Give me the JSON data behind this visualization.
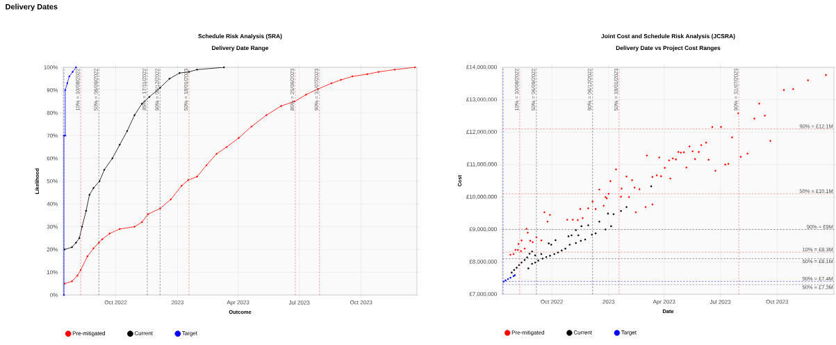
{
  "chart_data": [
    {
      "type": "line",
      "title": "Schedule Risk Analysis (SRA)",
      "subtitle": "Delivery Date Range",
      "xlabel": "Outcome",
      "ylabel": "Likelihood",
      "annotations": [
        "Delivery Dates"
      ],
      "series": [
        {
          "name": "Pre-mitigated",
          "color": "#ff0000",
          "x": [
            "2022-07-17",
            "2022-07-28",
            "2022-08-05",
            "2022-08-10",
            "2022-08-20",
            "2022-08-29",
            "2022-09-06",
            "2022-09-11",
            "2022-09-22",
            "2022-10-07",
            "2022-10-29",
            "2022-11-09",
            "2022-11-18",
            "2022-12-06",
            "2022-12-22",
            "2023-01-07",
            "2023-01-17",
            "2023-01-30",
            "2023-02-13",
            "2023-02-28",
            "2023-03-15",
            "2023-04-02",
            "2023-04-21",
            "2023-05-13",
            "2023-06-04",
            "2023-06-24",
            "2023-07-11",
            "2023-07-29",
            "2023-08-18",
            "2023-09-01",
            "2023-09-18",
            "2023-10-10",
            "2023-10-27",
            "2023-11-20",
            "2023-12-20"
          ],
          "values": [
            5,
            6,
            8.5,
            11,
            17,
            20.5,
            23,
            24.5,
            27,
            29,
            30,
            32,
            35.5,
            38,
            42,
            48,
            50.5,
            52,
            57,
            62,
            65,
            69,
            74,
            79,
            83,
            85,
            88,
            90.5,
            93,
            94.5,
            96,
            97,
            98,
            99,
            100
          ]
        },
        {
          "name": "Current",
          "color": "#000000",
          "x": [
            "2022-07-17",
            "2022-07-28",
            "2022-08-03",
            "2022-08-08",
            "2022-08-12",
            "2022-08-18",
            "2022-08-23",
            "2022-08-29",
            "2022-09-07",
            "2022-09-14",
            "2022-09-26",
            "2022-10-07",
            "2022-10-18",
            "2022-10-29",
            "2022-11-09",
            "2022-11-20",
            "2022-12-06",
            "2022-12-20",
            "2023-01-04",
            "2023-01-18",
            "2023-01-30",
            "2023-03-11"
          ],
          "values": [
            20,
            21,
            23,
            25,
            30,
            37,
            44,
            47,
            50,
            55,
            60,
            66,
            72,
            79,
            84,
            87,
            91,
            95,
            97.5,
            98,
            99,
            100
          ]
        },
        {
          "name": "Target",
          "color": "#0000ff",
          "x": [
            "2022-07-16",
            "2022-07-16",
            "2022-07-18",
            "2022-07-18",
            "2022-07-21",
            "2022-07-24",
            "2022-07-29",
            "2022-08-03"
          ],
          "values": [
            0,
            70,
            70,
            90,
            93,
            96,
            98,
            100
          ]
        }
      ],
      "xlim": [
        "2022-07-15",
        "2023-12-23"
      ],
      "xticks": [
        {
          "value": "2022-10-01",
          "label": "Oct 2022"
        },
        {
          "value": "2023-01-01",
          "label": "2023"
        },
        {
          "value": "2023-04-01",
          "label": "Apr 2023"
        },
        {
          "value": "2023-07-01",
          "label": "Jul 2023"
        },
        {
          "value": "2023-10-01",
          "label": "Oct 2023"
        }
      ],
      "ylim": [
        0,
        100
      ],
      "yticks": [
        {
          "value": 0,
          "label": "0%"
        },
        {
          "value": 10,
          "label": "10%"
        },
        {
          "value": 20,
          "label": "20%"
        },
        {
          "value": 30,
          "label": "30%"
        },
        {
          "value": 40,
          "label": "40%"
        },
        {
          "value": 50,
          "label": "50%"
        },
        {
          "value": 60,
          "label": "60%"
        },
        {
          "value": 70,
          "label": "70%"
        },
        {
          "value": 80,
          "label": "80%"
        },
        {
          "value": 90,
          "label": "90%"
        },
        {
          "value": 100,
          "label": "100%"
        }
      ],
      "ref_lines": [
        {
          "axis": "x",
          "value": "2022-07-16",
          "color": "#3a3ad0",
          "line_style": "dashed"
        },
        {
          "axis": "x",
          "value": "2022-08-10",
          "label": "10% = 10/08/2022",
          "color": "#f06a6a",
          "line_style": "dashed"
        },
        {
          "axis": "x",
          "value": "2022-09-06",
          "label": "50% = 06/09/2022",
          "color": "#555555",
          "line_style": "dashed"
        },
        {
          "axis": "x",
          "value": "2022-11-17",
          "label": "85% = 17/11/2022",
          "color": "#555555",
          "line_style": "dashed"
        },
        {
          "axis": "x",
          "value": "2022-12-06",
          "label": "90% = 06/12/2022",
          "color": "#555555",
          "line_style": "dashed"
        },
        {
          "axis": "x",
          "value": "2023-01-18",
          "label": "50% = 18/01/2023",
          "color": "#f06a6a",
          "line_style": "dashed"
        },
        {
          "axis": "x",
          "value": "2023-06-25",
          "label": "85% = 25/06/2023",
          "color": "#f06a6a",
          "line_style": "dashed"
        },
        {
          "axis": "x",
          "value": "2023-07-31",
          "label": "90% = 31/07/2023",
          "color": "#f06a6a",
          "line_style": "dashed"
        }
      ],
      "grid": true,
      "legend": "bottom",
      "marker": "circle"
    },
    {
      "type": "scatter",
      "title": "Joint Cost and Schedule Risk Analysis (JCSRA)",
      "subtitle": "Delivery Date vs Project Cost Ranges",
      "xlabel": "Date",
      "ylabel": "Cost",
      "series": [
        {
          "name": "Pre-mitigated",
          "color": "#ff0000",
          "x": [
            "2023-12-19",
            "2023-11-20",
            "2023-10-27",
            "2023-10-12",
            "2023-09-02",
            "2023-09-11",
            "2023-08-25",
            "2023-07-30",
            "2023-07-20",
            "2023-07-02",
            "2023-06-18",
            "2023-09-20",
            "2023-08-14",
            "2023-08-03",
            "2023-07-14",
            "2023-07-09",
            "2023-06-23",
            "2023-06-12",
            "2023-06-08",
            "2023-05-31",
            "2023-05-27",
            "2023-05-21",
            "2023-05-17",
            "2023-05-12",
            "2023-05-07",
            "2023-05-03",
            "2023-04-28",
            "2023-04-24",
            "2023-04-20",
            "2023-04-15",
            "2023-04-11",
            "2023-04-09",
            "2023-04-02",
            "2023-03-27",
            "2023-03-20",
            "2023-03-24",
            "2023-03-13",
            "2023-03-04",
            "2023-02-20",
            "2023-02-12",
            "2023-02-08",
            "2023-01-30",
            "2023-02-03",
            "2023-01-22",
            "2023-01-21",
            "2023-01-13",
            "2023-01-04",
            "2023-01-01",
            "2022-12-27",
            "2022-12-17",
            "2022-12-24",
            "2022-12-06",
            "2022-12-29",
            "2023-02-14",
            "2023-03-02",
            "2023-03-13",
            "2022-12-11",
            "2022-11-29",
            "2022-11-16",
            "2022-11-20",
            "2022-11-12",
            "2022-11-04",
            "2022-10-26",
            "2022-09-28",
            "2022-09-19",
            "2022-09-24",
            "2022-09-14",
            "2022-09-06",
            "2022-08-31",
            "2022-08-27",
            "2022-08-23",
            "2022-08-21",
            "2022-08-18",
            "2022-08-13",
            "2022-08-08",
            "2022-08-12",
            "2022-08-07",
            "2022-08-03",
            "2022-07-31",
            "2022-07-26"
          ],
          "values": [
            13760000,
            13600000,
            13330000,
            13300000,
            12880000,
            12510000,
            12420000,
            12580000,
            11840000,
            12160000,
            12160000,
            11730000,
            11340000,
            11240000,
            11020000,
            11000000,
            10810000,
            11150000,
            11680000,
            11600000,
            11390000,
            11170000,
            11410000,
            11560000,
            10910000,
            11380000,
            11370000,
            11390000,
            11160000,
            11190000,
            10570000,
            11130000,
            10900000,
            10640000,
            10670000,
            11220000,
            10620000,
            11280000,
            10240000,
            10290000,
            10520000,
            10630000,
            10000000,
            10260000,
            10010000,
            10850000,
            10490000,
            10100000,
            10000000,
            10230000,
            9730000,
            9860000,
            9960000,
            9530000,
            9690000,
            9770000,
            9630000,
            9650000,
            9630000,
            9350000,
            9290000,
            9300000,
            9300000,
            9450000,
            9530000,
            9240000,
            8660000,
            8760000,
            8610000,
            8650000,
            8900000,
            9020000,
            8410000,
            8660000,
            8550000,
            8330000,
            8370000,
            8370000,
            8240000,
            8220000
          ]
        },
        {
          "name": "Current",
          "color": "#000000",
          "x": [
            "2023-03-11",
            "2023-01-30",
            "2023-01-21",
            "2023-01-09",
            "2022-12-31",
            "2022-12-17",
            "2023-01-05",
            "2022-12-27",
            "2022-12-11",
            "2022-12-05",
            "2022-11-29",
            "2022-11-18",
            "2022-11-13",
            "2022-11-09",
            "2022-11-02",
            "2022-10-28",
            "2022-11-24",
            "2022-11-17",
            "2022-11-09",
            "2022-10-30",
            "2022-10-23",
            "2022-10-17",
            "2022-10-11",
            "2022-10-05",
            "2022-09-28",
            "2022-09-22",
            "2022-09-16",
            "2022-09-09",
            "2022-09-04",
            "2022-08-30",
            "2022-08-24",
            "2022-10-07",
            "2022-09-30",
            "2022-09-26",
            "2022-09-14",
            "2022-09-04",
            "2022-08-30",
            "2022-08-26",
            "2022-08-22",
            "2022-08-18",
            "2022-08-13",
            "2022-08-09",
            "2022-08-05",
            "2022-08-01",
            "2022-07-28"
          ],
          "values": [
            10330000,
            9690000,
            9570000,
            9470000,
            9490000,
            9240000,
            9100000,
            9000000,
            8880000,
            8840000,
            9130000,
            9100000,
            8820000,
            8980000,
            8820000,
            8790000,
            8690000,
            8650000,
            8580000,
            8530000,
            8410000,
            8350000,
            8290000,
            8240000,
            8190000,
            8150000,
            8100000,
            8040000,
            7980000,
            7940000,
            7800000,
            8670000,
            8530000,
            8570000,
            8240000,
            8200000,
            8320000,
            8250000,
            8140000,
            8060000,
            7980000,
            7900000,
            7820000,
            7750000,
            7670000
          ]
        },
        {
          "name": "Target",
          "color": "#0000ff",
          "x": [
            "2022-07-15",
            "2022-07-18",
            "2022-07-22",
            "2022-07-26",
            "2022-07-31",
            "2022-08-02"
          ],
          "values": [
            7390000,
            7430000,
            7470000,
            7510000,
            7560000,
            7590000
          ]
        }
      ],
      "xlim": [
        "2022-07-13",
        "2024-01-01"
      ],
      "xticks": [
        {
          "value": "2022-10-01",
          "label": "Oct 2022"
        },
        {
          "value": "2023-01-01",
          "label": "2023"
        },
        {
          "value": "2023-04-01",
          "label": "Apr 2023"
        },
        {
          "value": "2023-07-01",
          "label": "Jul 2023"
        },
        {
          "value": "2023-10-01",
          "label": "Oct 2023"
        }
      ],
      "ylim": [
        7000000,
        14000000
      ],
      "yticks": [
        {
          "value": 7000000,
          "label": "£7,000,000"
        },
        {
          "value": 8000000,
          "label": "£8,000,000"
        },
        {
          "value": 9000000,
          "label": "£9,000,000"
        },
        {
          "value": 10000000,
          "label": "£10,000,000"
        },
        {
          "value": 11000000,
          "label": "£11,000,000"
        },
        {
          "value": 12000000,
          "label": "£12,000,000"
        },
        {
          "value": 13000000,
          "label": "£13,000,000"
        },
        {
          "value": 14000000,
          "label": "£14,000,000"
        }
      ],
      "ref_lines": [
        {
          "axis": "x",
          "value": "2022-07-14",
          "color": "#3a3ad0",
          "line_style": "dashed"
        },
        {
          "axis": "x",
          "value": "2022-08-10",
          "label": "10% = 10/08/2022",
          "color": "#f06a6a",
          "line_style": "dashed"
        },
        {
          "axis": "x",
          "value": "2022-09-06",
          "label": "50% = 06/09/2022",
          "color": "#555555",
          "line_style": "dashed"
        },
        {
          "axis": "x",
          "value": "2022-12-06",
          "label": "90% = 06/12/2022",
          "color": "#555555",
          "line_style": "dashed"
        },
        {
          "axis": "x",
          "value": "2023-01-18",
          "label": "50% = 18/01/2023",
          "color": "#f06a6a",
          "line_style": "dashed"
        },
        {
          "axis": "x",
          "value": "2023-07-31",
          "label": "90% = 31/07/2023",
          "color": "#f06a6a",
          "line_style": "dashed"
        },
        {
          "axis": "y",
          "value": 12100000,
          "label": "90% = £12.1M",
          "color": "#f06a6a",
          "line_style": "dashed"
        },
        {
          "axis": "y",
          "value": 10100000,
          "label": "50% = £10.1M",
          "color": "#f06a6a",
          "line_style": "dashed"
        },
        {
          "axis": "y",
          "value": 9000000,
          "label": "90% = £9M",
          "color": "#555555",
          "line_style": "dashed"
        },
        {
          "axis": "y",
          "value": 8300000,
          "label": "10% = £8.3M",
          "color": "#f06a6a",
          "line_style": "dashed"
        },
        {
          "axis": "y",
          "value": 8100000,
          "label": "50% = £8.1M",
          "color": "#555555",
          "line_style": "dashed"
        },
        {
          "axis": "y",
          "value": 7400000,
          "label": "90% = £7.4M",
          "color": "#3a3ad0",
          "line_style": "dashed"
        },
        {
          "axis": "y",
          "value": 7300000,
          "label": "50% = £7.3M",
          "color": "#6f73b0",
          "line_style": "dashed"
        }
      ],
      "grid": true,
      "legend": "bottom",
      "marker": "circle"
    }
  ]
}
